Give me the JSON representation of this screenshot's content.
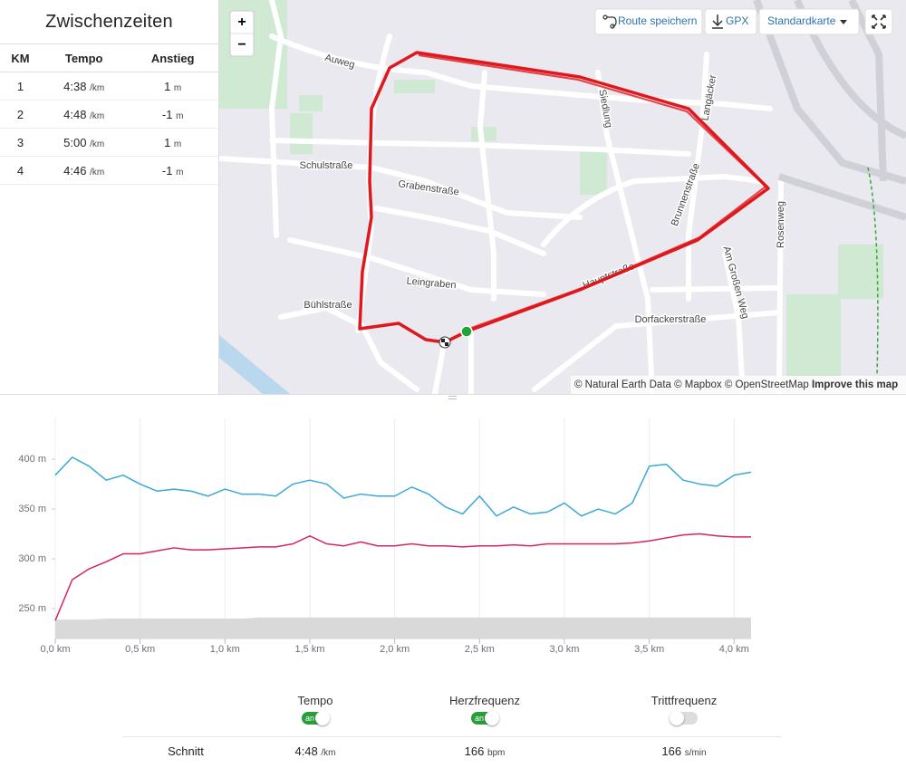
{
  "left_panel": {
    "title": "Zwischenzeiten",
    "columns": [
      "KM",
      "Tempo",
      "Anstieg"
    ],
    "rows": [
      {
        "km": "1",
        "tempo": "4:38",
        "tempo_unit": "/km",
        "climb": "1",
        "climb_unit": "m"
      },
      {
        "km": "2",
        "tempo": "4:48",
        "tempo_unit": "/km",
        "climb": "-1",
        "climb_unit": "m"
      },
      {
        "km": "3",
        "tempo": "5:00",
        "tempo_unit": "/km",
        "climb": "1",
        "climb_unit": "m"
      },
      {
        "km": "4",
        "tempo": "4:46",
        "tempo_unit": "/km",
        "climb": "-1",
        "climb_unit": "m"
      }
    ]
  },
  "map": {
    "zoom_in": "+",
    "zoom_out": "−",
    "buttons": [
      "Route speichern",
      "GPX",
      "Standardkarte"
    ],
    "street_labels": [
      "Auweg",
      "Schulstraße",
      "Grabenstraße",
      "Leingraben",
      "Bühlstraße",
      "Siedlung",
      "Langäcker",
      "Brunnenstraße",
      "Rosenweg",
      "Am Großen Weg",
      "Dorfackerstraße",
      "Hauptstraße"
    ],
    "attribution": "© Natural Earth Data © Mapbox © OpenStreetMap",
    "attribution_link": "Improve this map"
  },
  "chart_data": {
    "type": "line",
    "x": [
      0,
      0.1,
      0.2,
      0.3,
      0.4,
      0.5,
      0.6,
      0.7,
      0.8,
      0.9,
      1.0,
      1.1,
      1.2,
      1.3,
      1.4,
      1.5,
      1.6,
      1.7,
      1.8,
      1.9,
      2.0,
      2.1,
      2.2,
      2.3,
      2.4,
      2.5,
      2.6,
      2.7,
      2.8,
      2.9,
      3.0,
      3.1,
      3.2,
      3.3,
      3.4,
      3.5,
      3.6,
      3.7,
      3.8,
      3.9,
      4.0,
      4.1
    ],
    "series": [
      {
        "style": "area",
        "color": "#d9d9d9",
        "values": [
          239,
          239,
          239,
          240,
          240,
          240,
          240,
          240,
          240,
          240,
          240,
          240,
          241,
          241,
          241,
          241,
          241,
          241,
          241,
          241,
          241,
          241,
          241,
          241,
          241,
          241,
          241,
          241,
          241,
          241,
          241,
          241,
          241,
          241,
          241,
          241,
          241,
          241,
          241,
          241,
          241,
          241
        ]
      },
      {
        "style": "line",
        "color": "#3aa8d8",
        "values": [
          384,
          402,
          393,
          379,
          384,
          375,
          368,
          370,
          368,
          363,
          370,
          365,
          365,
          363,
          375,
          379,
          375,
          361,
          365,
          363,
          363,
          372,
          365,
          352,
          345,
          363,
          343,
          352,
          345,
          347,
          356,
          343,
          350,
          345,
          356,
          393,
          395,
          379,
          375,
          373,
          384,
          387
        ]
      },
      {
        "style": "line",
        "color": "#d6245c",
        "values": [
          238,
          279,
          290,
          297,
          305,
          305,
          308,
          311,
          309,
          309,
          310,
          311,
          312,
          312,
          315,
          323,
          315,
          313,
          317,
          313,
          313,
          315,
          313,
          313,
          312,
          313,
          313,
          314,
          313,
          315,
          315,
          315,
          315,
          315,
          316,
          318,
          321,
          324,
          325,
          323,
          322,
          322
        ]
      }
    ],
    "xlim": [
      0,
      4.1
    ],
    "ylim": [
      220,
      441
    ],
    "xticks": [
      {
        "value": 0,
        "label": "0,0 km"
      },
      {
        "value": 0.5,
        "label": "0,5 km"
      },
      {
        "value": 1,
        "label": "1,0 km"
      },
      {
        "value": 1.5,
        "label": "1,5 km"
      },
      {
        "value": 2,
        "label": "2,0 km"
      },
      {
        "value": 2.5,
        "label": "2,5 km"
      },
      {
        "value": 3,
        "label": "3,0 km"
      },
      {
        "value": 3.5,
        "label": "3,5 km"
      },
      {
        "value": 4,
        "label": "4,0 km"
      }
    ],
    "yticks": [
      {
        "value": 250,
        "label": "250 m"
      },
      {
        "value": 300,
        "label": "300 m"
      },
      {
        "value": 350,
        "label": "350 m"
      },
      {
        "value": 400,
        "label": "400 m"
      }
    ],
    "grid": "x"
  },
  "toggles": [
    {
      "label": "Tempo",
      "on": true,
      "state": "an"
    },
    {
      "label": "Herzfrequenz",
      "on": true,
      "state": "an"
    },
    {
      "label": "Trittfrequenz",
      "on": false
    }
  ],
  "summary": {
    "label": "Schnitt",
    "cells": [
      {
        "value": "4:48",
        "unit": "/km"
      },
      {
        "value": "166",
        "unit": "bpm"
      },
      {
        "value": "166",
        "unit": "s/min"
      }
    ]
  }
}
